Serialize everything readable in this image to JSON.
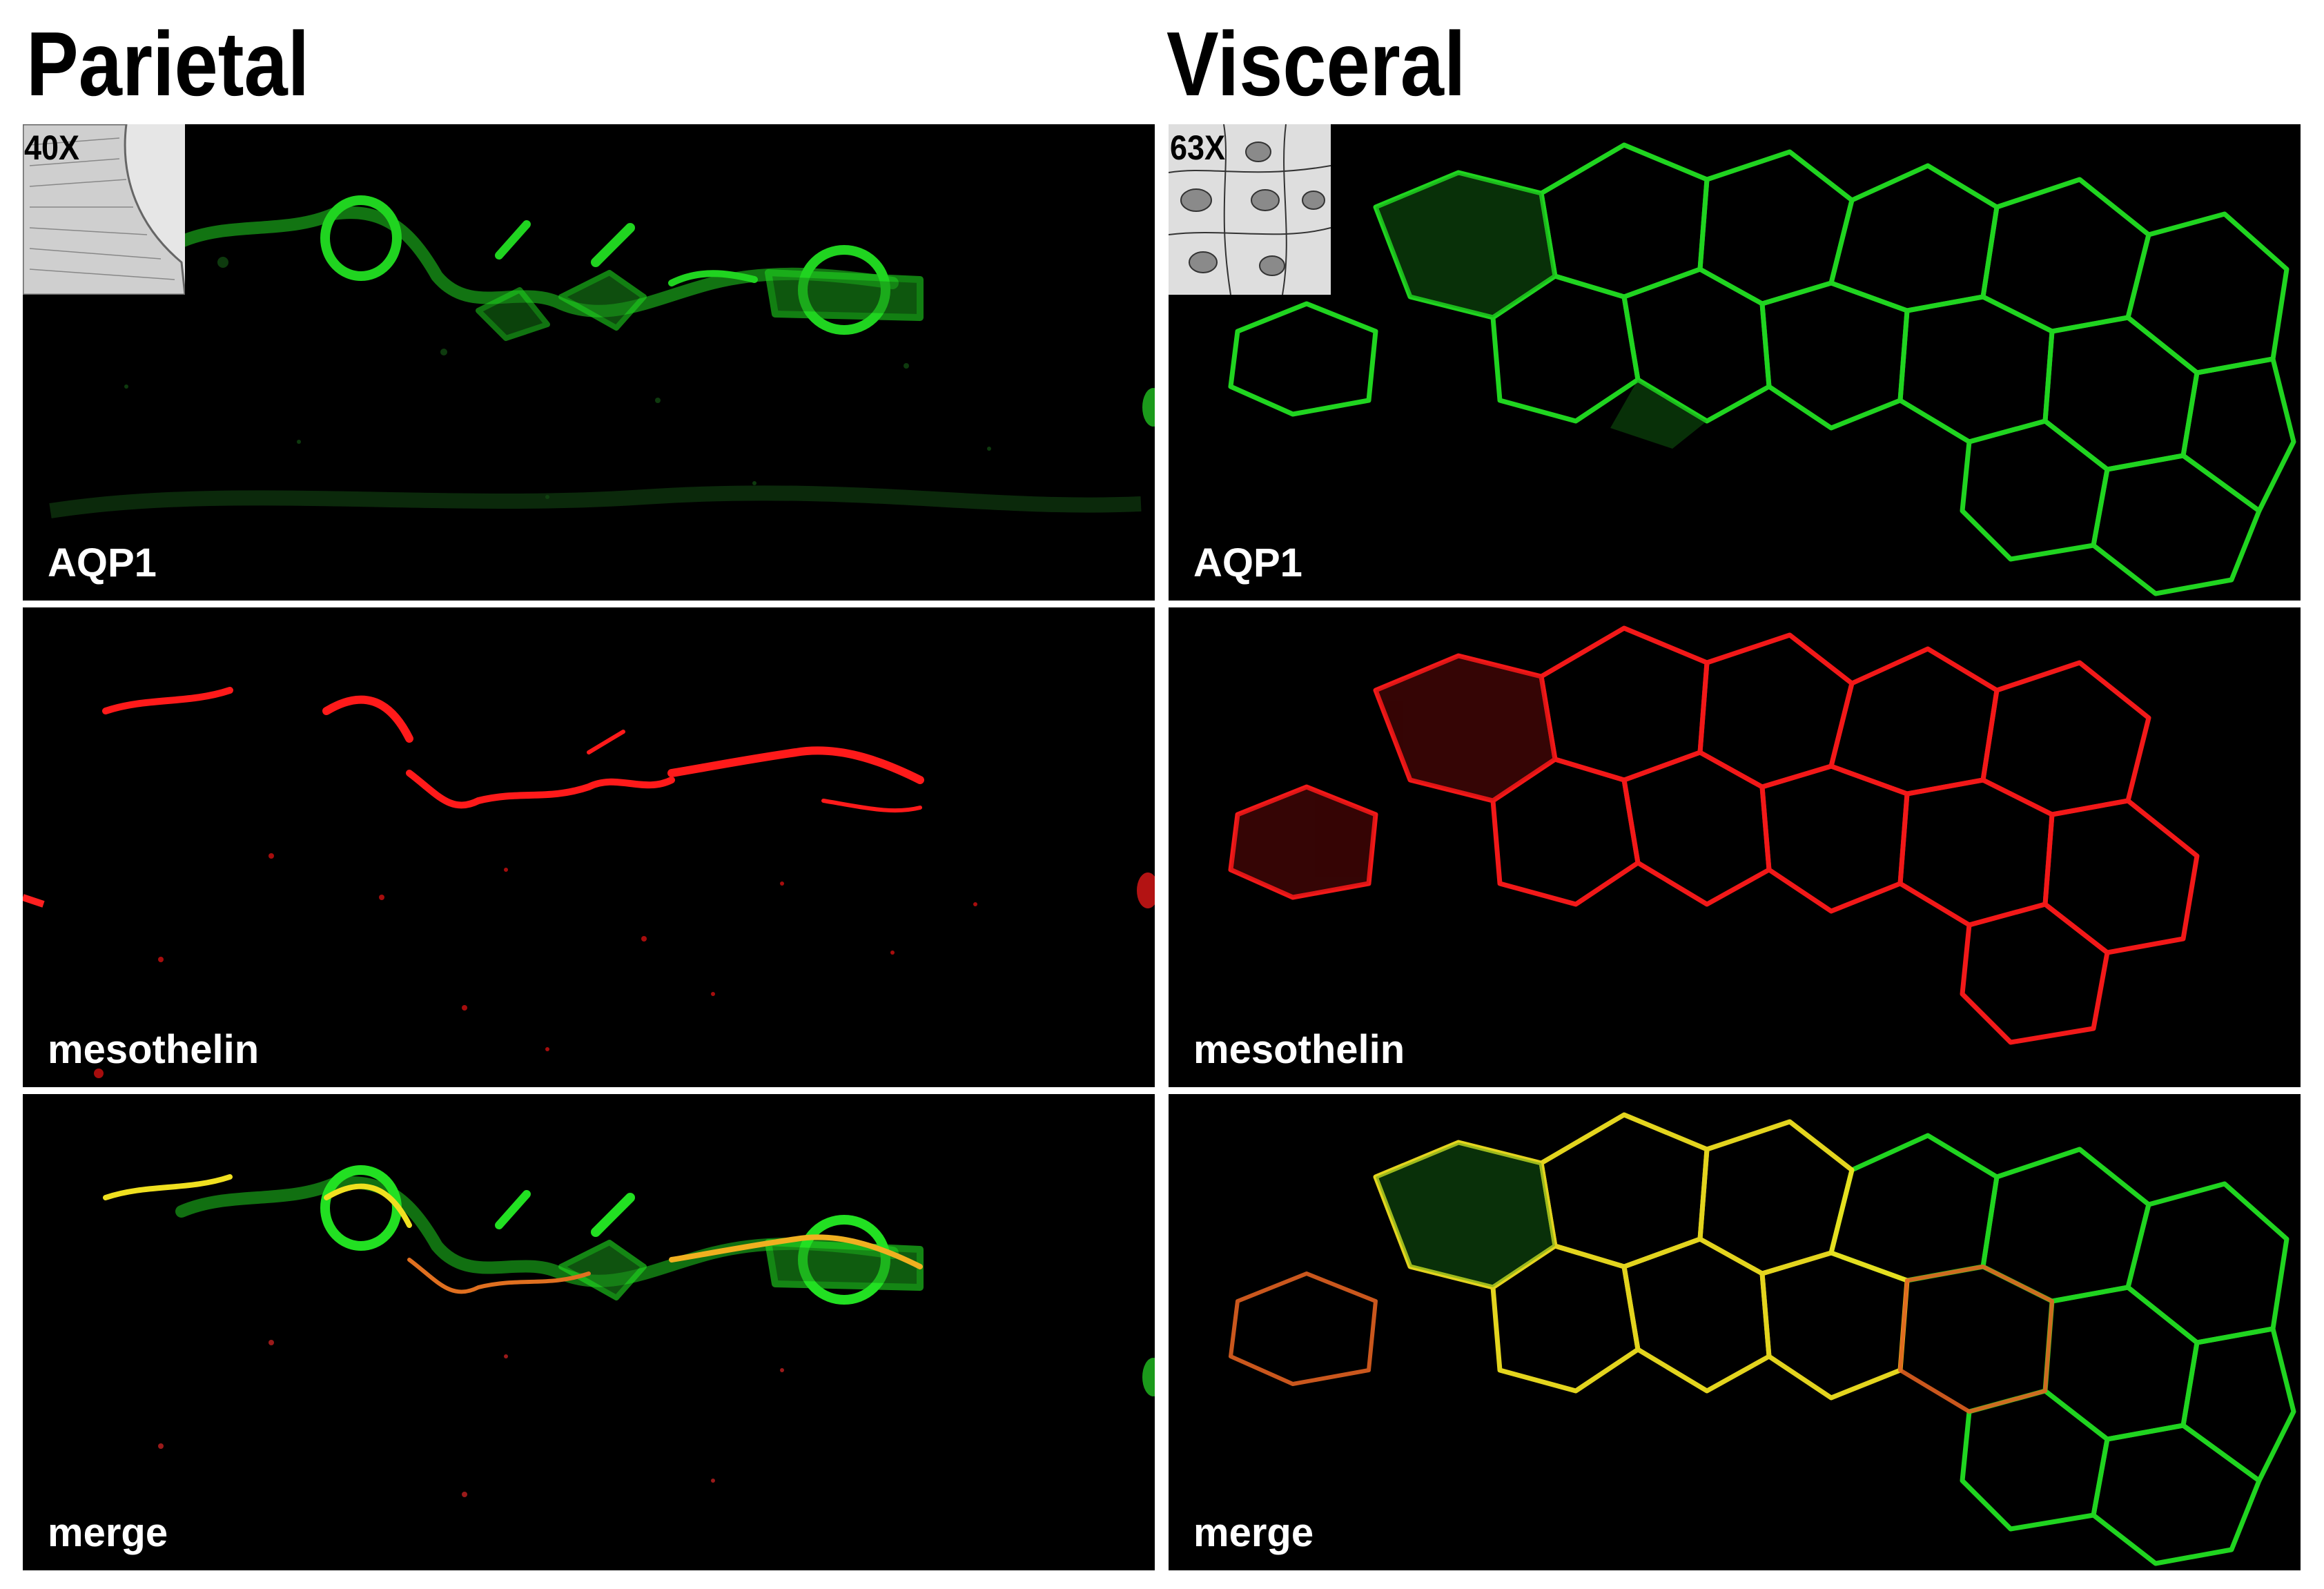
{
  "columns": {
    "parietal": {
      "title": "Parietal",
      "magnification": "40X",
      "panels": {
        "aqp1": "AQP1",
        "mesothelin": "mesothelin",
        "merge": "merge"
      }
    },
    "visceral": {
      "title": "Visceral",
      "magnification": "63X",
      "panels": {
        "aqp1": "AQP1",
        "mesothelin": "mesothelin",
        "merge": "merge"
      }
    }
  },
  "colors": {
    "background": "#000000",
    "aqp1_stain": "#22e022",
    "mesothelin_stain": "#ff1a1a",
    "colocalization": "#f0e020",
    "separator": "#ffffff"
  },
  "icons": {
    "parietal_inset": "tissue-section-sketch-icon",
    "visceral_inset": "cell-nuclei-sketch-icon"
  }
}
